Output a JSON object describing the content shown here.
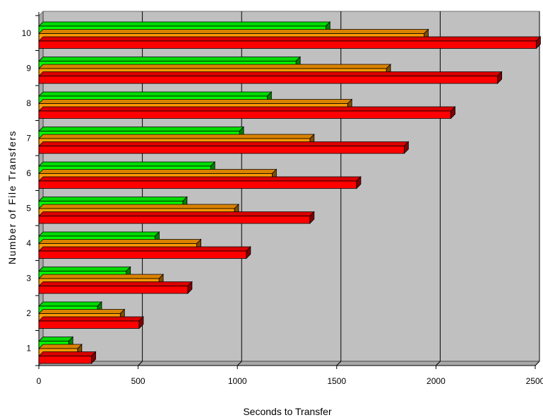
{
  "chart_data": {
    "type": "bar",
    "orientation": "horizontal",
    "style": "3d",
    "title": "",
    "xlabel": "Seconds to Transfer",
    "ylabel": "Number of File Transfers",
    "xlim": [
      0,
      2500
    ],
    "xticks": [
      0,
      500,
      1000,
      1500,
      2000,
      2500
    ],
    "grid": true,
    "legend": "none",
    "categories": [
      "1",
      "2",
      "3",
      "4",
      "5",
      "6",
      "7",
      "8",
      "9",
      "10"
    ],
    "series": [
      {
        "color": "#00ff00",
        "values": [
          150,
          295,
          440,
          585,
          725,
          865,
          1010,
          1150,
          1295,
          1445
        ]
      },
      {
        "color": "#ff9900",
        "values": [
          195,
          410,
          605,
          795,
          985,
          1175,
          1365,
          1555,
          1750,
          1940
        ]
      },
      {
        "color": "#ff0000",
        "values": [
          265,
          505,
          750,
          1045,
          1365,
          1600,
          1840,
          2075,
          2310,
          2505
        ]
      }
    ],
    "colors": {
      "plot_back_wall": "#c0c0c0",
      "plot_floor": "#a8a8a8",
      "grid": "#000000"
    }
  }
}
